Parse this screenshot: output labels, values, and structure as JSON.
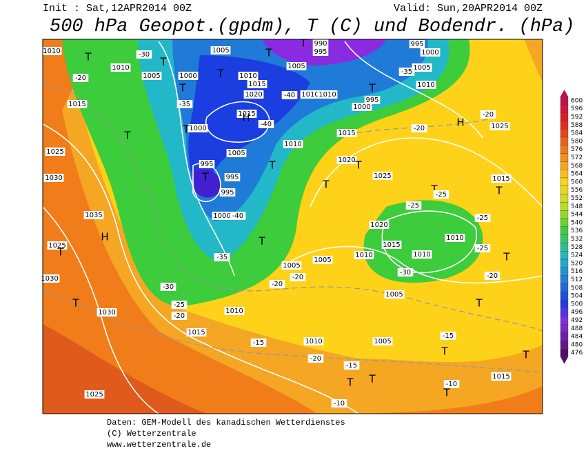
{
  "header": {
    "init": "Init : Sat,12APR2014 00Z",
    "valid": "Valid: Sun,20APR2014 00Z",
    "title": "500 hPa Geopot.(gpdm), T (C) und Bodendr. (hPa)"
  },
  "colorbar": [
    600,
    596,
    592,
    588,
    584,
    580,
    576,
    572,
    568,
    564,
    560,
    556,
    552,
    548,
    544,
    540,
    536,
    532,
    528,
    524,
    520,
    516,
    512,
    508,
    504,
    500,
    496,
    492,
    488,
    484,
    480,
    476
  ],
  "map_labels": [
    "1010",
    "T",
    "1005",
    "T",
    "1010",
    "1005",
    "1000",
    "T",
    "T",
    "1010",
    "1015",
    "1020",
    "T",
    "T",
    "990",
    "995",
    "1005",
    "1000",
    "995",
    "1005",
    "T",
    "1010",
    "1010",
    "1010",
    "995",
    "1000",
    "1015",
    "1015",
    "H",
    "1000",
    "T",
    "T",
    "1015",
    "1010",
    "1005",
    "1025",
    "995",
    "T",
    "995",
    "995",
    "T",
    "1020",
    "1025",
    "T",
    "T",
    "1030",
    "1035",
    "H",
    "1025",
    "T",
    "1000",
    "T",
    "1020",
    "1015",
    "1010",
    "1005",
    "1005",
    "1010",
    "1010",
    "1030",
    "T",
    "1030",
    "1010",
    "1015",
    "1010",
    "1005",
    "1005",
    "1025",
    "1025",
    "H",
    "1015",
    "T",
    "T",
    "T",
    "T",
    "T",
    "T",
    "T",
    "1015",
    "T",
    "T",
    "-30",
    "-20",
    "-35",
    "-40",
    "-40",
    "-35",
    "-20",
    "-20",
    "-25",
    "-25",
    "-25",
    "-25",
    "-20",
    "-30",
    "-35",
    "-40",
    "-30",
    "-25",
    "-20",
    "-20",
    "-20",
    "-15",
    "-15",
    "-20",
    "-10",
    "-10",
    "-15"
  ],
  "footer": [
    "Daten: GEM-Modell des kanadischen Wetterdienstes",
    "(C) Wetterzentrale",
    "www.wetterzentrale.de"
  ]
}
